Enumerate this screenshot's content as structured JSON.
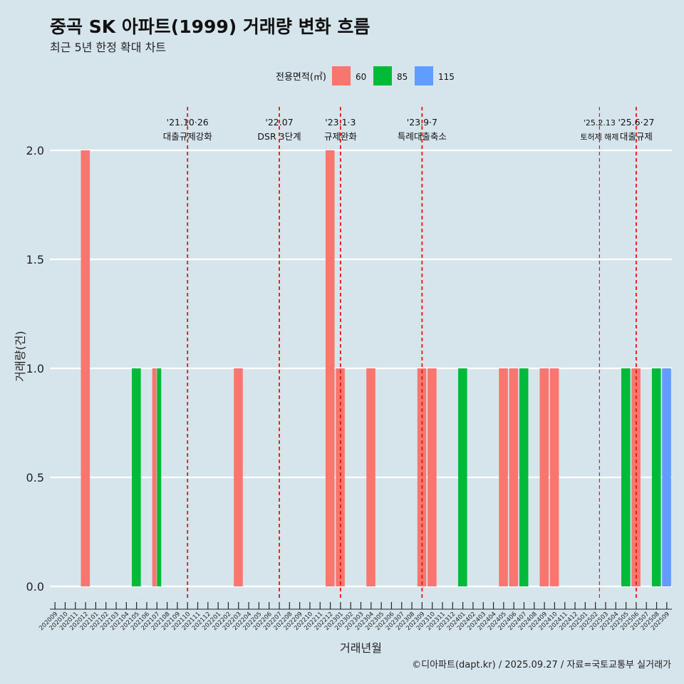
{
  "title": "중곡 SK 아파트(1999) 거래량 변화 흐름",
  "subtitle": "최근 5년 한정 확대 차트",
  "caption": "©디아파트(dapt.kr) / 2025.09.27 / 자료=국토교통부 실거래가",
  "chart_data": {
    "type": "bar",
    "xlabel": "거래년월",
    "ylabel": "거래량(건)",
    "ylim": [
      0,
      2
    ],
    "yticks": [
      0.0,
      0.5,
      1.0,
      1.5,
      2.0
    ],
    "ytick_labels": [
      "0.0",
      "0.5",
      "1.0",
      "1.5",
      "2.0"
    ],
    "legend_title": "전용면적(㎡)",
    "legend_position": "top",
    "grid": true,
    "categories": [
      "202009",
      "202010",
      "202011",
      "202012",
      "202101",
      "202102",
      "202103",
      "202104",
      "202105",
      "202106",
      "202107",
      "202108",
      "202109",
      "202110",
      "202111",
      "202112",
      "202201",
      "202202",
      "202203",
      "202204",
      "202205",
      "202206",
      "202207",
      "202208",
      "202209",
      "202210",
      "202211",
      "202212",
      "202301",
      "202302",
      "202303",
      "202304",
      "202305",
      "202306",
      "202307",
      "202308",
      "202309",
      "202310",
      "202311",
      "202312",
      "202401",
      "202402",
      "202403",
      "202404",
      "202405",
      "202406",
      "202407",
      "202408",
      "202409",
      "202410",
      "202411",
      "202412",
      "202501",
      "202502",
      "202503",
      "202504",
      "202505",
      "202506",
      "202507",
      "202508",
      "202509"
    ],
    "series": [
      {
        "name": "60",
        "color": "#f8766d",
        "points": [
          [
            "202012",
            2
          ],
          [
            "202107",
            1
          ],
          [
            "202203",
            1
          ],
          [
            "202212",
            2
          ],
          [
            "202301",
            1
          ],
          [
            "202304",
            1
          ],
          [
            "202309",
            1
          ],
          [
            "202310",
            1
          ],
          [
            "202405",
            1
          ],
          [
            "202406",
            1
          ],
          [
            "202409",
            1
          ],
          [
            "202410",
            1
          ],
          [
            "202506",
            1
          ]
        ]
      },
      {
        "name": "85",
        "color": "#00ba38",
        "points": [
          [
            "202105",
            1
          ],
          [
            "202107",
            1
          ],
          [
            "202401",
            1
          ],
          [
            "202407",
            1
          ],
          [
            "202505",
            1
          ],
          [
            "202508",
            1
          ]
        ]
      },
      {
        "name": "115",
        "color": "#619cff",
        "points": [
          [
            "202509",
            1
          ]
        ]
      }
    ],
    "annotations": [
      {
        "date": "'21.10·26",
        "label": "대출규제강화",
        "x": "202110",
        "offset": 0
      },
      {
        "date": "'22.07",
        "label": "DSR 3단계",
        "x": "202207",
        "offset": 0
      },
      {
        "date": "'23.1·3",
        "label": "규제완화",
        "x": "202301",
        "offset": 0
      },
      {
        "date": "'23.9·7",
        "label": "특례대출축소",
        "x": "202309",
        "offset": 0
      },
      {
        "date": "'25.2.13",
        "label": "토허제 해제",
        "x": "202502",
        "offset": 0.4
      },
      {
        "date": "'25.6·27",
        "label": "대출규제",
        "x": "202506",
        "offset": 0
      }
    ]
  }
}
